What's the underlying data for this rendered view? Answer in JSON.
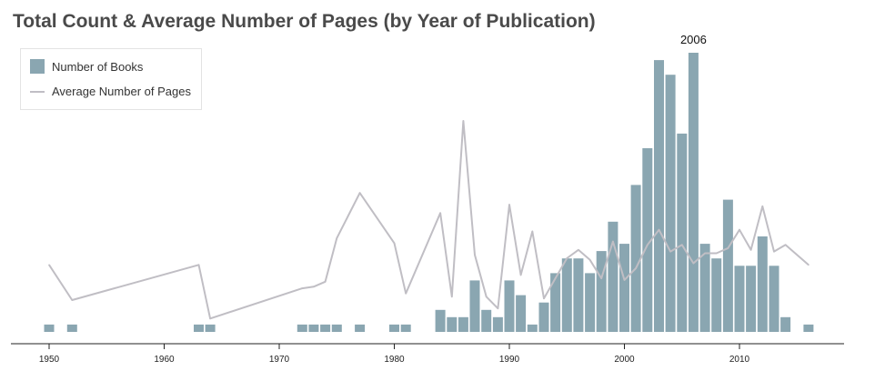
{
  "chart_data": {
    "type": "bar",
    "title": "Total Count & Average Number of Pages (by Year of Publication)",
    "xlabel": "",
    "ylabel": "",
    "grid": false,
    "legend_position": "top-left",
    "xlim": [
      1948,
      2018
    ],
    "x_ticks": [
      1950,
      1960,
      1970,
      1980,
      1990,
      2000,
      2010
    ],
    "annotation": {
      "x": 2006,
      "text": "2006"
    },
    "colors": {
      "bars": "#8aa6b1",
      "line": "#c0bec4",
      "axis": "#222222",
      "title": "#4a4a4a"
    },
    "series": [
      {
        "name": "Number of Books",
        "type": "bar",
        "ylim": [
          0,
          40
        ],
        "x": [
          1950,
          1952,
          1963,
          1964,
          1972,
          1973,
          1974,
          1975,
          1977,
          1980,
          1981,
          1984,
          1985,
          1986,
          1987,
          1988,
          1989,
          1990,
          1991,
          1992,
          1993,
          1994,
          1995,
          1996,
          1997,
          1998,
          1999,
          2000,
          2001,
          2002,
          2003,
          2004,
          2005,
          2006,
          2007,
          2008,
          2009,
          2010,
          2011,
          2012,
          2013,
          2014,
          2016
        ],
        "values": [
          1,
          1,
          1,
          1,
          1,
          1,
          1,
          1,
          1,
          1,
          1,
          3,
          2,
          2,
          7,
          3,
          2,
          7,
          5,
          1,
          4,
          8,
          10,
          10,
          8,
          11,
          15,
          12,
          20,
          25,
          37,
          35,
          27,
          38,
          12,
          10,
          18,
          9,
          9,
          13,
          9,
          2,
          1
        ]
      },
      {
        "name": "Average Number of Pages",
        "type": "line",
        "ylim": [
          0,
          700
        ],
        "x": [
          1950,
          1952,
          1963,
          1964,
          1972,
          1973,
          1974,
          1975,
          1977,
          1980,
          1981,
          1984,
          1985,
          1986,
          1987,
          1988,
          1989,
          1990,
          1991,
          1992,
          1993,
          1994,
          1995,
          1996,
          1997,
          1998,
          1999,
          2000,
          2001,
          2002,
          2003,
          2004,
          2005,
          2006,
          2007,
          2008,
          2009,
          2010,
          2011,
          2012,
          2013,
          2014,
          2016
        ],
        "values": [
          200,
          95,
          200,
          40,
          130,
          135,
          150,
          280,
          415,
          265,
          115,
          355,
          105,
          630,
          230,
          105,
          70,
          380,
          170,
          300,
          100,
          160,
          220,
          245,
          215,
          160,
          270,
          155,
          190,
          260,
          305,
          240,
          260,
          205,
          235,
          235,
          250,
          305,
          245,
          375,
          240,
          260,
          200
        ]
      }
    ]
  }
}
